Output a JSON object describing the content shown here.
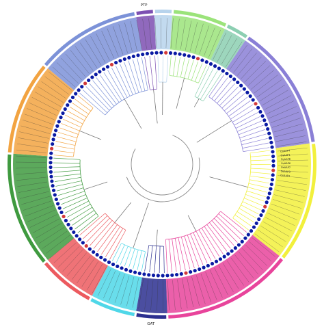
{
  "figure": {
    "clade_labels": [
      {
        "id": "PTP",
        "label": "PTP"
      },
      {
        "id": "OPT",
        "label": ""
      },
      {
        "id": "top_green",
        "label": ""
      },
      {
        "id": "SAT1",
        "label": ""
      },
      {
        "id": "blue_right",
        "label": ""
      },
      {
        "id": "AAP",
        "label": ""
      },
      {
        "id": "pink",
        "label": ""
      },
      {
        "id": "GAT",
        "label": "GAT"
      },
      {
        "id": "cyan",
        "label": ""
      },
      {
        "id": "red",
        "label": ""
      },
      {
        "id": "green",
        "label": ""
      },
      {
        "id": "orange",
        "label": ""
      },
      {
        "id": "blue_left",
        "label": ""
      }
    ],
    "visible_leaf_labels": [
      "OsAAP4",
      "OsAAP1",
      "OsAAP8",
      "OsAAP6",
      "OsAAP7",
      "OsAAP3",
      "OsAAP2"
    ],
    "colors": {
      "PTP": "#7c4fb2",
      "OPT": "#b7d3ec",
      "top_green": "#9be37a",
      "SAT1": "#8ccfb2",
      "blue_right": "#8a7fd6",
      "AAP": "#f2f03c",
      "pink": "#e8449b",
      "GAT": "#2b2f8f",
      "cyan": "#4fd7e8",
      "red": "#ec5a5f",
      "green": "#3f9a3f",
      "orange": "#f2a341",
      "blue_left": "#7c92d8",
      "marker_blue": "#0a1aa3",
      "marker_red": "#d23a3a"
    }
  }
}
